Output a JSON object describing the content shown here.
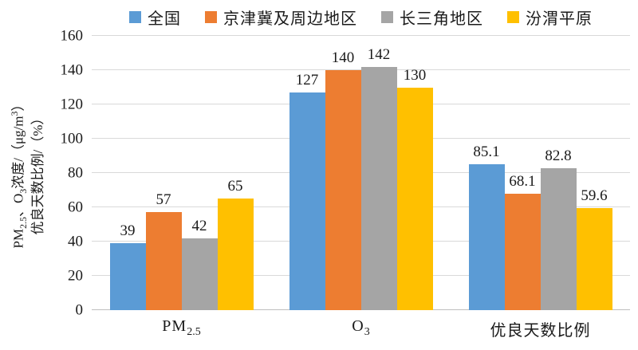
{
  "chart_data": {
    "type": "bar",
    "title": "",
    "categories": [
      {
        "base": "PM",
        "sub": "2.5"
      },
      {
        "base": "O",
        "sub": "3"
      },
      {
        "base": "优良天数比例"
      }
    ],
    "series": [
      {
        "name": "全国",
        "color": "#5B9BD5",
        "values": [
          39,
          127,
          85.1
        ]
      },
      {
        "name": "京津冀及周边地区",
        "color": "#ED7D31",
        "values": [
          57,
          140,
          68.1
        ]
      },
      {
        "name": "长三角地区",
        "color": "#A5A5A5",
        "values": [
          42,
          142,
          82.8
        ]
      },
      {
        "name": "汾渭平原",
        "color": "#FFC000",
        "values": [
          65,
          130,
          59.6
        ]
      }
    ],
    "ylabel_lines": [
      [
        {
          "t": "PM"
        },
        {
          "sub": "2.5"
        },
        {
          "t": "、O"
        },
        {
          "sub": "3"
        },
        {
          "t": "浓度/（μg/m"
        },
        {
          "sup": "3"
        },
        {
          "t": "）"
        }
      ],
      [
        {
          "t": "优良天数比例/（%）"
        }
      ]
    ],
    "yticks": [
      0,
      20,
      40,
      60,
      80,
      100,
      120,
      140,
      160
    ],
    "ylim": [
      0,
      160
    ],
    "grid": true,
    "legend_position": "top",
    "gridline_color": "#D9D9D9",
    "axis_line_color": "#BFBFBF",
    "label_color": "#1A1A1A"
  }
}
